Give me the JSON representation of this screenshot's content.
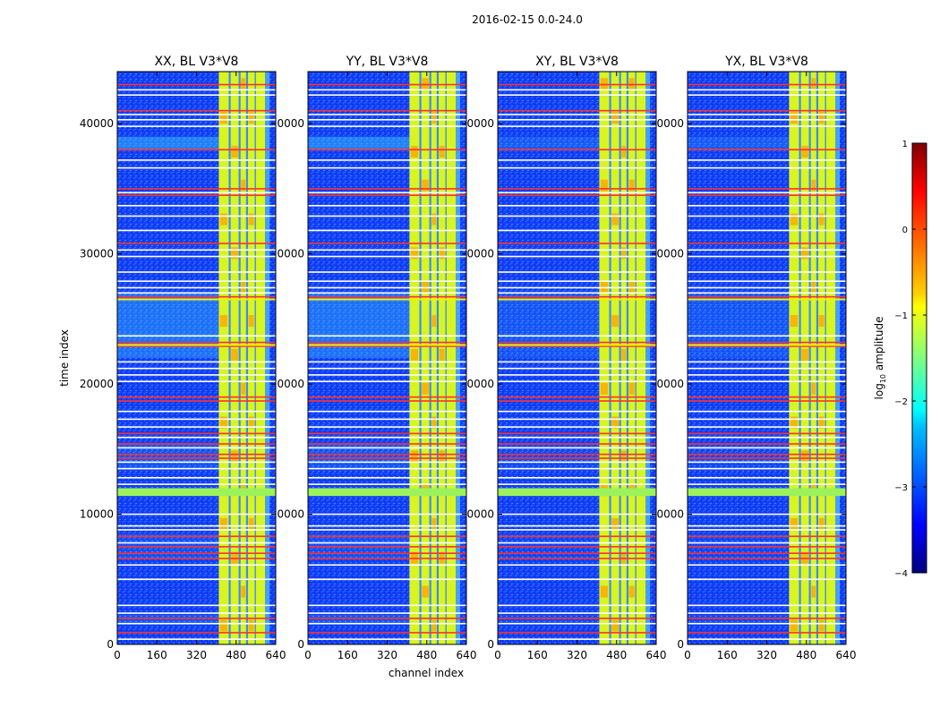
{
  "figure_title": "2016-02-15 0.0-24.0",
  "chart_data": {
    "type": "heatmap",
    "suptitle": "2016-02-15 0.0-24.0",
    "xlabel": "channel index",
    "ylabel": "time index",
    "xlim": [
      0,
      640
    ],
    "ylim": [
      0,
      44000
    ],
    "x_ticks": [
      0,
      160,
      320,
      480,
      640
    ],
    "x_tick_labels": [
      "0",
      "160",
      "320",
      "480",
      "640"
    ],
    "y_ticks": [
      0,
      10000,
      20000,
      30000,
      40000
    ],
    "y_tick_labels": [
      "0",
      "10000",
      "20000",
      "30000",
      "40000"
    ],
    "y_tick_labels_shared": [
      "0",
      "0000",
      "0000",
      "0000",
      "0000"
    ],
    "colorbar": {
      "label": "log10 amplitude",
      "label_main": "log",
      "label_sub": "10",
      "label_rest": " amplitude",
      "range": [
        -4,
        1
      ],
      "ticks": [
        1,
        0,
        -1,
        -2,
        -3,
        -4
      ],
      "tick_labels": [
        "1",
        "0",
        "−1",
        "−2",
        "−3",
        "−4"
      ],
      "colormap": "jet"
    },
    "panels": [
      {
        "title": "XX, BL V3*V8",
        "pol": "XX",
        "baseline": "BL V3*V8"
      },
      {
        "title": "YY, BL V3*V8",
        "pol": "YY",
        "baseline": "BL V3*V8"
      },
      {
        "title": "XY, BL V3*V8",
        "pol": "XY",
        "baseline": "BL V3*V8"
      },
      {
        "title": "YX, BL V3*V8",
        "pol": "YX",
        "baseline": "BL V3*V8"
      }
    ],
    "bright_channel_band": [
      410,
      600
    ],
    "flagged_rows_red": [
      43000,
      41000,
      38000,
      35000,
      34500,
      30800,
      26700,
      23200,
      22900,
      19000,
      18700,
      16200,
      15400,
      14600,
      14300,
      8300,
      7500,
      7000,
      6600,
      2000,
      900
    ],
    "flagged_rows_white": [
      42600,
      42200,
      40700,
      40300,
      39800,
      37200,
      36600,
      34700,
      33700,
      32900,
      31800,
      30300,
      29800,
      28600,
      27900,
      27400,
      27000,
      23700,
      21700,
      21200,
      20700,
      20200,
      17900,
      17300,
      16700,
      15900,
      15100,
      14000,
      13500,
      12800,
      12300,
      10000,
      9100,
      8800,
      7800,
      6100,
      5000,
      3000,
      2400,
      1600,
      400
    ],
    "flagged_band_green": [
      11400,
      12000
    ],
    "flagged_rows_yellow": [
      26500,
      23000
    ]
  }
}
